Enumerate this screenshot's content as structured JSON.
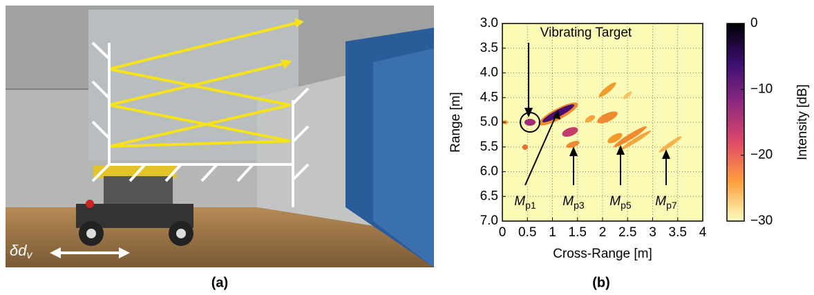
{
  "panel_a": {
    "caption": "(a)",
    "label": {
      "main": "δd",
      "sub": "v"
    }
  },
  "chart_data": {
    "type": "heatmap",
    "caption": "(b)",
    "xlabel": "Cross-Range [m]",
    "ylabel": "Range [m]",
    "xlim": [
      0,
      4
    ],
    "ylim": [
      3,
      7
    ],
    "y_inverted": true,
    "grid": true,
    "xticks": [
      0,
      0.5,
      1,
      1.5,
      2,
      2.5,
      3,
      3.5,
      4
    ],
    "yticks": [
      {
        "value": 3,
        "label": "3.0"
      },
      {
        "value": 3.5,
        "label": "3.5"
      },
      {
        "value": 4,
        "label": "4.0"
      },
      {
        "value": 4.5,
        "label": "4.5"
      },
      {
        "value": 5,
        "label": "5.0"
      },
      {
        "value": 5.5,
        "label": "5.5"
      },
      {
        "value": 6,
        "label": "6.0"
      },
      {
        "value": 6.5,
        "label": "6.5"
      },
      {
        "value": 7,
        "label": "7.0"
      }
    ],
    "colorbar": {
      "label": "Intensity [dB]",
      "lim": [
        -30,
        0
      ],
      "ticks": [
        0,
        {
          "value": -10,
          "label": "−10"
        },
        {
          "value": -20,
          "label": "−20"
        },
        {
          "value": -30,
          "label": "−30"
        }
      ]
    },
    "annotations": [
      {
        "main": "Vibrating Target"
      },
      {
        "main": "M",
        "sub": "p1"
      },
      {
        "main": "M",
        "sub": "p3"
      },
      {
        "main": "M",
        "sub": "p5"
      },
      {
        "main": "M",
        "sub": "p7"
      }
    ]
  }
}
